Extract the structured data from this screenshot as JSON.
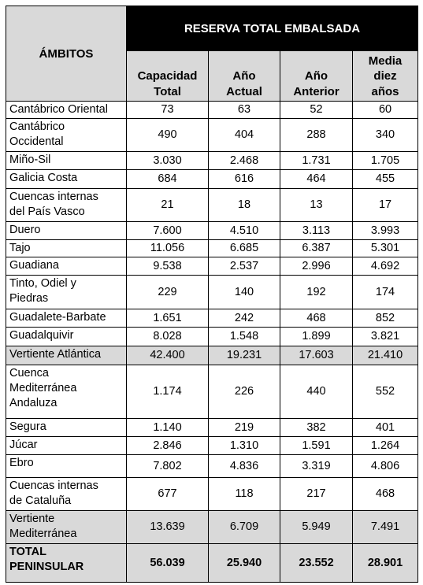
{
  "header": {
    "group_title": "RESERVA TOTAL EMBALSADA",
    "row_header": "ÁMBITOS",
    "columns": [
      [
        "Capacidad",
        "Total"
      ],
      [
        "Año",
        "Actual"
      ],
      [
        "Año",
        "Anterior"
      ],
      [
        "Media",
        "diez",
        "años"
      ]
    ]
  },
  "table": {
    "rows": [
      {
        "label": [
          "Cantábrico Oriental"
        ],
        "values": [
          "73",
          "63",
          "52",
          "60"
        ],
        "style": "normal"
      },
      {
        "label": [
          "Cantábrico",
          "Occidental"
        ],
        "values": [
          "490",
          "404",
          "288",
          "340"
        ],
        "style": "normal"
      },
      {
        "label": [
          "Miño-Sil"
        ],
        "values": [
          "3.030",
          "2.468",
          "1.731",
          "1.705"
        ],
        "style": "normal"
      },
      {
        "label": [
          "Galicia Costa"
        ],
        "values": [
          "684",
          "616",
          "464",
          "455"
        ],
        "style": "normal"
      },
      {
        "label": [
          "Cuencas internas",
          "del País Vasco"
        ],
        "values": [
          "21",
          "18",
          "13",
          "17"
        ],
        "style": "normal"
      },
      {
        "label": [
          "Duero"
        ],
        "values": [
          "7.600",
          "4.510",
          "3.113",
          "3.993"
        ],
        "style": "normal"
      },
      {
        "label": [
          "Tajo"
        ],
        "values": [
          "11.056",
          "6.685",
          "6.387",
          "5.301"
        ],
        "style": "normal"
      },
      {
        "label": [
          "Guadiana"
        ],
        "values": [
          "9.538",
          "2.537",
          "2.996",
          "4.692"
        ],
        "style": "normal"
      },
      {
        "label": [
          "Tinto, Odiel y",
          "Piedras"
        ],
        "values": [
          "229",
          "140",
          "192",
          "174"
        ],
        "style": "normal"
      },
      {
        "label": [
          "Guadalete-Barbate"
        ],
        "values": [
          "1.651",
          "242",
          "468",
          "852"
        ],
        "style": "normal"
      },
      {
        "label": [
          "Guadalquivir"
        ],
        "values": [
          "8.028",
          "1.548",
          "1.899",
          "3.821"
        ],
        "style": "normal"
      },
      {
        "label": [
          "Vertiente Atlántica"
        ],
        "values": [
          "42.400",
          "19.231",
          "17.603",
          "21.410"
        ],
        "style": "subtotal"
      },
      {
        "label": [
          "Cuenca",
          "Mediterránea",
          "Andaluza"
        ],
        "values": [
          "1.174",
          "226",
          "440",
          "552"
        ],
        "style": "normal"
      },
      {
        "label": [
          "Segura"
        ],
        "values": [
          "1.140",
          "219",
          "382",
          "401"
        ],
        "style": "normal"
      },
      {
        "label": [
          "Júcar"
        ],
        "values": [
          "2.846",
          "1.310",
          "1.591",
          "1.264"
        ],
        "style": "normal"
      },
      {
        "label": [
          "Ebro"
        ],
        "values": [
          "7.802",
          "4.836",
          "3.319",
          "4.806"
        ],
        "style": "normal"
      },
      {
        "label": [
          "Cuencas internas",
          "de Cataluña"
        ],
        "values": [
          "677",
          "118",
          "217",
          "468"
        ],
        "style": "normal"
      },
      {
        "label": [
          "Vertiente",
          "Mediterránea"
        ],
        "values": [
          "13.639",
          "6.709",
          "5.949",
          "7.491"
        ],
        "style": "subtotal"
      },
      {
        "label": [
          "TOTAL",
          "PENINSULAR"
        ],
        "values": [
          "56.039",
          "25.940",
          "23.552",
          "28.901"
        ],
        "style": "total"
      }
    ]
  }
}
